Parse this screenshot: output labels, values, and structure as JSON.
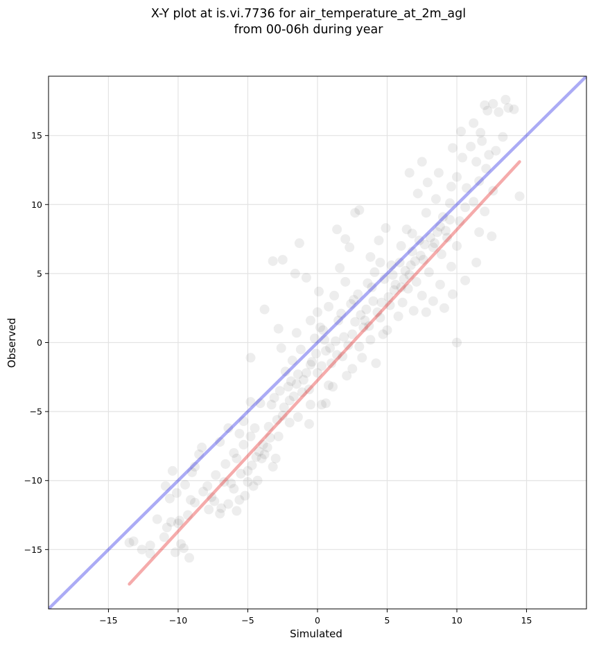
{
  "chart_data": {
    "type": "scatter",
    "title_lines": [
      "X-Y plot at is.vi.7736 for air_temperature_at_2m_agl",
      "from 00-06h during year"
    ],
    "xlabel": "Simulated",
    "ylabel": "Observed",
    "xlim": [
      -19.3,
      19.3
    ],
    "ylim": [
      -19.3,
      19.3
    ],
    "xticks": [
      -15,
      -10,
      -5,
      0,
      5,
      10,
      15
    ],
    "yticks": [
      -15,
      -10,
      -5,
      0,
      5,
      10,
      15
    ],
    "xtick_labels": [
      "−15",
      "−10",
      "−5",
      "0",
      "5",
      "10",
      "15"
    ],
    "ytick_labels": [
      "−15",
      "−10",
      "−5",
      "0",
      "5",
      "10",
      "15"
    ],
    "grid": true,
    "series": [
      {
        "kind": "scatter",
        "color": "#000000",
        "alpha": 0.07,
        "points": [
          [
            -13.2,
            -14.4
          ],
          [
            -13.5,
            -14.5
          ],
          [
            -12.0,
            -14.7
          ],
          [
            -12.0,
            -15.3
          ],
          [
            -10.5,
            -13.0
          ],
          [
            -10.0,
            -13.1
          ],
          [
            -9.8,
            -14.6
          ],
          [
            -10.2,
            -15.2
          ],
          [
            -9.2,
            -15.6
          ],
          [
            -9.6,
            -14.9
          ],
          [
            -10.6,
            -11.3
          ],
          [
            -10.4,
            -9.3
          ],
          [
            -9.5,
            -10.3
          ],
          [
            -8.8,
            -9.0
          ],
          [
            -8.3,
            -7.6
          ],
          [
            -8.8,
            -11.6
          ],
          [
            -7.8,
            -12.1
          ],
          [
            -7.6,
            -11.2
          ],
          [
            -7.0,
            -12.4
          ],
          [
            -6.4,
            -11.7
          ],
          [
            -5.8,
            -12.2
          ],
          [
            -6.7,
            -10.1
          ],
          [
            -6.0,
            -10.6
          ],
          [
            -5.5,
            -9.5
          ],
          [
            -5.0,
            -10.1
          ],
          [
            -5.2,
            -11.1
          ],
          [
            -4.7,
            -8.9
          ],
          [
            -6.0,
            -8.0
          ],
          [
            -7.0,
            -7.2
          ],
          [
            -6.4,
            -6.2
          ],
          [
            -5.6,
            -6.6
          ],
          [
            -5.3,
            -5.7
          ],
          [
            -4.8,
            -6.8
          ],
          [
            -4.2,
            -7.9
          ],
          [
            -3.8,
            -8.1
          ],
          [
            -3.6,
            -7.6
          ],
          [
            -4.0,
            -8.4
          ],
          [
            -3.2,
            -9.0
          ],
          [
            -3.5,
            -6.1
          ],
          [
            -2.8,
            -6.8
          ],
          [
            -2.5,
            -5.3
          ],
          [
            -4.8,
            -4.3
          ],
          [
            -4.1,
            -4.4
          ],
          [
            -3.3,
            -4.5
          ],
          [
            -4.8,
            -1.1
          ],
          [
            -3.8,
            2.4
          ],
          [
            -3.2,
            5.9
          ],
          [
            -2.5,
            6.0
          ],
          [
            -1.6,
            5.0
          ],
          [
            -1.3,
            7.2
          ],
          [
            -0.8,
            4.7
          ],
          [
            -2.7,
            -3.5
          ],
          [
            -2.0,
            -4.2
          ],
          [
            -1.5,
            -3.0
          ],
          [
            -2.3,
            -2.1
          ],
          [
            -1.8,
            -1.3
          ],
          [
            -1.0,
            -2.7
          ],
          [
            -0.5,
            -1.6
          ],
          [
            -1.2,
            -0.5
          ],
          [
            -2.6,
            -0.4
          ],
          [
            -2.8,
            1.0
          ],
          [
            -1.5,
            0.7
          ],
          [
            -0.2,
            0.3
          ],
          [
            -0.6,
            -3.4
          ],
          [
            0.0,
            -2.2
          ],
          [
            0.3,
            -4.5
          ],
          [
            0.8,
            -3.1
          ],
          [
            -1.4,
            -5.4
          ],
          [
            -0.6,
            -5.9
          ],
          [
            0.6,
            -0.6
          ],
          [
            1.0,
            -1.5
          ],
          [
            0.4,
            0.9
          ],
          [
            1.3,
            0.1
          ],
          [
            1.8,
            -1.0
          ],
          [
            2.1,
            -2.4
          ],
          [
            1.5,
            1.6
          ],
          [
            0.8,
            2.6
          ],
          [
            0.1,
            3.7
          ],
          [
            1.2,
            3.4
          ],
          [
            0.0,
            2.2
          ],
          [
            -0.5,
            1.6
          ],
          [
            2.5,
            0.6
          ],
          [
            3.0,
            -0.3
          ],
          [
            2.7,
            1.5
          ],
          [
            3.3,
            1.1
          ],
          [
            3.8,
            0.2
          ],
          [
            4.2,
            -1.5
          ],
          [
            2.4,
            2.8
          ],
          [
            2.9,
            3.5
          ],
          [
            3.5,
            2.4
          ],
          [
            4.0,
            3.0
          ],
          [
            4.5,
            1.8
          ],
          [
            5.0,
            0.9
          ],
          [
            2.0,
            4.4
          ],
          [
            1.6,
            5.4
          ],
          [
            2.3,
            6.9
          ],
          [
            2.7,
            9.4
          ],
          [
            3.0,
            9.6
          ],
          [
            1.4,
            8.2
          ],
          [
            2.0,
            7.5
          ],
          [
            3.6,
            4.3
          ],
          [
            4.1,
            5.1
          ],
          [
            3.8,
            6.2
          ],
          [
            4.4,
            7.4
          ],
          [
            4.9,
            8.3
          ],
          [
            4.5,
            5.8
          ],
          [
            5.2,
            2.7
          ],
          [
            5.5,
            3.8
          ],
          [
            5.8,
            1.9
          ],
          [
            6.1,
            2.9
          ],
          [
            6.5,
            3.9
          ],
          [
            6.9,
            2.3
          ],
          [
            5.4,
            4.9
          ],
          [
            5.9,
            5.8
          ],
          [
            6.2,
            4.6
          ],
          [
            6.7,
            5.6
          ],
          [
            7.1,
            4.4
          ],
          [
            7.5,
            3.4
          ],
          [
            6.0,
            7.0
          ],
          [
            6.4,
            8.2
          ],
          [
            6.8,
            6.6
          ],
          [
            7.3,
            7.4
          ],
          [
            7.6,
            6.0
          ],
          [
            8.0,
            5.1
          ],
          [
            8.3,
            6.9
          ],
          [
            8.6,
            8.0
          ],
          [
            8.9,
            6.4
          ],
          [
            9.3,
            7.6
          ],
          [
            9.6,
            5.5
          ],
          [
            10.0,
            7.0
          ],
          [
            7.8,
            9.4
          ],
          [
            8.5,
            10.4
          ],
          [
            9.0,
            9.1
          ],
          [
            9.5,
            10.1
          ],
          [
            10.2,
            8.8
          ],
          [
            10.6,
            9.8
          ],
          [
            7.2,
            10.8
          ],
          [
            7.9,
            11.6
          ],
          [
            8.7,
            12.3
          ],
          [
            6.6,
            12.3
          ],
          [
            7.5,
            13.1
          ],
          [
            9.6,
            11.3
          ],
          [
            10.0,
            12.0
          ],
          [
            10.7,
            11.2
          ],
          [
            11.2,
            10.2
          ],
          [
            11.6,
            11.7
          ],
          [
            12.0,
            9.5
          ],
          [
            12.6,
            11.0
          ],
          [
            10.4,
            13.4
          ],
          [
            11.0,
            14.2
          ],
          [
            11.4,
            13.1
          ],
          [
            11.8,
            14.6
          ],
          [
            12.1,
            12.6
          ],
          [
            12.3,
            13.6
          ],
          [
            9.7,
            14.1
          ],
          [
            10.3,
            15.3
          ],
          [
            11.7,
            15.2
          ],
          [
            11.2,
            15.9
          ],
          [
            12.8,
            13.9
          ],
          [
            13.3,
            14.9
          ],
          [
            12.0,
            17.2
          ],
          [
            12.6,
            17.3
          ],
          [
            13.5,
            17.6
          ],
          [
            13.7,
            17.0
          ],
          [
            14.1,
            16.9
          ],
          [
            13.0,
            16.7
          ],
          [
            12.2,
            16.8
          ],
          [
            14.5,
            10.6
          ],
          [
            10.0,
            0.0
          ],
          [
            12.5,
            7.7
          ],
          [
            11.4,
            5.8
          ],
          [
            11.6,
            8.0
          ],
          [
            9.7,
            3.5
          ],
          [
            8.8,
            4.2
          ],
          [
            10.6,
            4.5
          ],
          [
            7.8,
            2.2
          ],
          [
            8.3,
            3.0
          ],
          [
            9.1,
            2.5
          ],
          [
            4.7,
            0.6
          ],
          [
            3.2,
            -1.1
          ],
          [
            2.5,
            -1.9
          ],
          [
            1.1,
            -3.2
          ],
          [
            0.6,
            -4.4
          ],
          [
            -0.5,
            -4.5
          ],
          [
            -2.0,
            -5.8
          ],
          [
            -3.4,
            -6.9
          ],
          [
            -3.9,
            -7.4
          ],
          [
            -4.4,
            -8.3
          ],
          [
            -4.3,
            -10.0
          ],
          [
            -5.0,
            -9.3
          ],
          [
            -6.2,
            -10.2
          ],
          [
            -7.4,
            -11.5
          ],
          [
            -8.2,
            -10.8
          ],
          [
            -9.0,
            -9.4
          ],
          [
            -9.3,
            -12.5
          ],
          [
            -9.9,
            -12.9
          ],
          [
            -10.8,
            -13.4
          ],
          [
            -11.0,
            -14.1
          ],
          [
            -12.6,
            -15.0
          ],
          [
            -11.5,
            -12.8
          ],
          [
            -10.9,
            -10.4
          ],
          [
            -10.1,
            -10.9
          ],
          [
            0.2,
            1.1
          ],
          [
            0.5,
            0.2
          ],
          [
            0.9,
            -0.4
          ],
          [
            1.4,
            -0.9
          ],
          [
            1.9,
            0.4
          ],
          [
            2.2,
            -0.2
          ],
          [
            -0.1,
            -0.8
          ],
          [
            -0.4,
            -1.4
          ],
          [
            0.3,
            -1.7
          ],
          [
            -0.8,
            -2.2
          ],
          [
            -1.1,
            -3.6
          ],
          [
            -1.7,
            -3.9
          ],
          [
            3.1,
            2.0
          ],
          [
            3.4,
            1.6
          ],
          [
            3.7,
            1.2
          ],
          [
            4.3,
            2.2
          ],
          [
            4.6,
            2.9
          ],
          [
            5.1,
            3.3
          ],
          [
            5.6,
            4.2
          ],
          [
            6.0,
            4.0
          ],
          [
            6.3,
            5.2
          ],
          [
            6.6,
            4.9
          ],
          [
            7.0,
            5.9
          ],
          [
            7.4,
            6.3
          ],
          [
            7.7,
            7.1
          ],
          [
            8.1,
            7.6
          ],
          [
            8.4,
            7.2
          ],
          [
            8.8,
            8.4
          ],
          [
            9.2,
            8.1
          ],
          [
            9.5,
            8.9
          ],
          [
            -2.4,
            -4.7
          ],
          [
            -2.9,
            -5.6
          ],
          [
            -3.1,
            -4.0
          ],
          [
            -1.9,
            -2.8
          ],
          [
            -1.4,
            -2.3
          ],
          [
            -2.1,
            -3.2
          ],
          [
            1.7,
            2.1
          ],
          [
            2.6,
            3.1
          ],
          [
            3.9,
            4.0
          ],
          [
            4.8,
            4.6
          ],
          [
            5.3,
            5.6
          ],
          [
            6.8,
            7.9
          ],
          [
            -6.6,
            -8.8
          ],
          [
            -7.3,
            -9.6
          ],
          [
            -7.9,
            -10.4
          ],
          [
            -5.8,
            -8.4
          ],
          [
            -5.3,
            -7.4
          ],
          [
            -4.5,
            -6.2
          ],
          [
            -8.5,
            -8.1
          ],
          [
            -9.1,
            -11.4
          ],
          [
            -6.9,
            -12.0
          ],
          [
            -5.6,
            -11.4
          ],
          [
            -4.6,
            -10.4
          ],
          [
            -3.0,
            -8.4
          ]
        ]
      }
    ],
    "lines": [
      {
        "name": "",
        "color": "#0000e0",
        "alpha": 0.33,
        "points": [
          [
            -19.3,
            -19.3
          ],
          [
            19.3,
            19.3
          ]
        ]
      },
      {
        "name": "",
        "color": "#e00000",
        "alpha": 0.33,
        "points": [
          [
            -13.5,
            -17.5
          ],
          [
            14.5,
            13.1
          ]
        ]
      }
    ]
  }
}
